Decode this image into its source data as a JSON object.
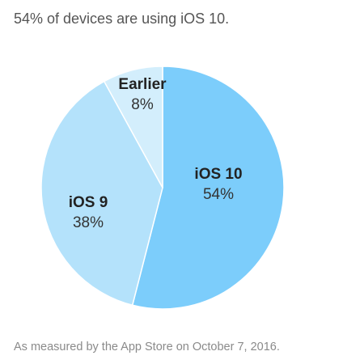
{
  "chart_data": {
    "type": "pie",
    "title": "54% of devices are using iOS 10.",
    "footnote": "As measured by the App Store on October 7, 2016.",
    "slices": [
      {
        "name": "iOS 10",
        "value": 54,
        "label": "54%",
        "color": "#7ccdfb"
      },
      {
        "name": "iOS 9",
        "value": 38,
        "label": "38%",
        "color": "#b4e2fb"
      },
      {
        "name": "Earlier",
        "value": 8,
        "label": "8%",
        "color": "#d3eefc"
      }
    ],
    "start": "12 o'clock",
    "direction": "clockwise",
    "separator_color": "#ffffff"
  }
}
